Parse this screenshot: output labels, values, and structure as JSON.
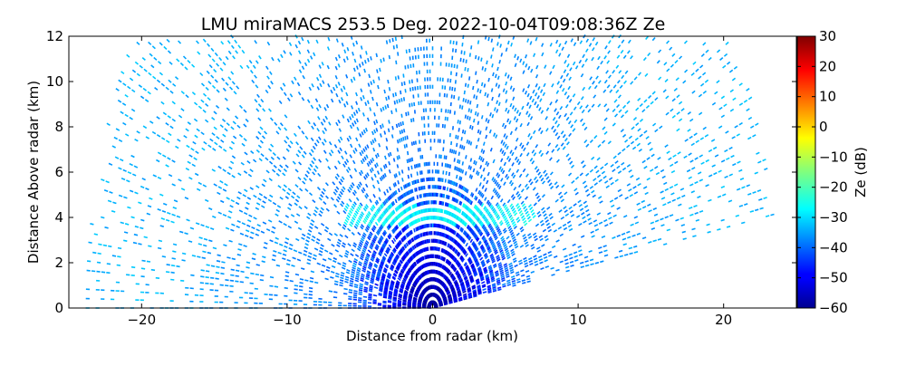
{
  "chart_data": {
    "type": "heatmap",
    "title": "LMU miraMACS 253.5 Deg. 2022-10-04T09:08:36Z  Ze",
    "xlabel": "Distance from radar (km)",
    "ylabel": "Distance Above radar  (km)",
    "xlim": [
      -25,
      25
    ],
    "ylim": [
      0,
      12
    ],
    "x_ticks": [
      -20,
      -10,
      0,
      10,
      20
    ],
    "x_tick_labels": [
      "−20",
      "−10",
      "0",
      "10",
      "20"
    ],
    "y_ticks": [
      0,
      2,
      4,
      6,
      8,
      10,
      12
    ],
    "y_tick_labels": [
      "0",
      "2",
      "4",
      "6",
      "8",
      "10",
      "12"
    ],
    "colorbar": {
      "label": "Ze (dB)",
      "range": [
        -60,
        30
      ],
      "ticks": [
        -60,
        -50,
        -40,
        -30,
        -20,
        -10,
        0,
        10,
        20,
        30
      ],
      "tick_labels": [
        "−60",
        "−50",
        "−40",
        "−30",
        "−20",
        "−10",
        "0",
        "10",
        "20",
        "30"
      ],
      "colormap": "jet"
    },
    "scan": {
      "type": "RHI",
      "azimuth_deg": 253.5,
      "max_range_km": 24,
      "elevation_range_deg": [
        0,
        180
      ],
      "blanked_sector_deg": [
        0,
        10
      ],
      "background_ze_db": -33,
      "noise_ze_near_radar_db": -45,
      "cloud_layer": {
        "height_km": 4.1,
        "x_range_km": [
          -6,
          7
        ],
        "ze_db": -27
      }
    }
  }
}
